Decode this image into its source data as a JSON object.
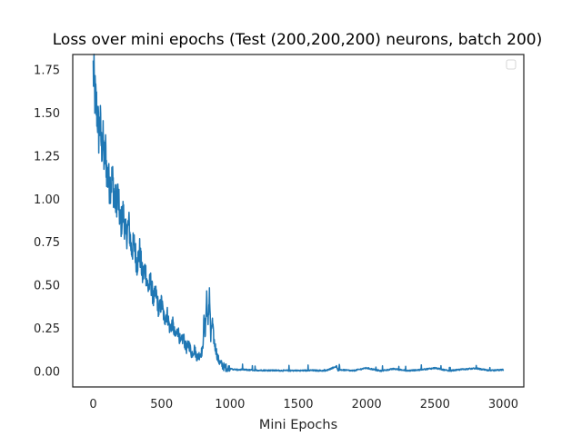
{
  "chart_data": {
    "type": "line",
    "title": "Loss over mini epochs (Test (200,200,200) neurons, batch 200)",
    "xlabel": "Mini Epochs",
    "ylabel": "",
    "xlim": [
      -150,
      3150
    ],
    "ylim": [
      -0.09,
      1.84
    ],
    "xticks": [
      0,
      500,
      1000,
      1500,
      2000,
      2500,
      3000
    ],
    "xtick_labels": [
      "0",
      "500",
      "1000",
      "1500",
      "2000",
      "2500",
      "3000"
    ],
    "yticks": [
      0.0,
      0.25,
      0.5,
      0.75,
      1.0,
      1.25,
      1.5,
      1.75
    ],
    "ytick_labels": [
      "0.00",
      "0.25",
      "0.50",
      "0.75",
      "1.00",
      "1.25",
      "1.50",
      "1.75"
    ],
    "grid": false,
    "legend": {
      "placement": "top-right",
      "entries": []
    },
    "series": [
      {
        "color": "#1f77b4",
        "x": [
          0,
          10,
          20,
          30,
          40,
          50,
          60,
          70,
          80,
          90,
          100,
          120,
          140,
          160,
          180,
          200,
          220,
          240,
          260,
          280,
          300,
          320,
          340,
          360,
          380,
          400,
          420,
          440,
          460,
          480,
          500,
          520,
          540,
          560,
          580,
          600,
          620,
          640,
          660,
          680,
          700,
          720,
          740,
          760,
          780,
          800,
          810,
          820,
          830,
          840,
          850,
          860,
          870,
          880,
          890,
          900,
          910,
          920,
          930,
          940,
          950,
          960,
          980,
          1000,
          1050,
          1100,
          1150,
          1200,
          1300,
          1400,
          1500,
          1600,
          1700,
          1780,
          1790,
          1800,
          1900,
          2000,
          2100,
          2200,
          2300,
          2400,
          2500,
          2600,
          2700,
          2800,
          2900,
          3000
        ],
        "values": [
          1.75,
          1.62,
          1.55,
          1.5,
          1.38,
          1.45,
          1.3,
          1.35,
          1.22,
          1.28,
          1.15,
          1.08,
          1.12,
          0.98,
          1.02,
          0.85,
          0.92,
          0.78,
          0.86,
          0.7,
          0.74,
          0.62,
          0.7,
          0.55,
          0.6,
          0.48,
          0.52,
          0.42,
          0.45,
          0.35,
          0.4,
          0.3,
          0.34,
          0.25,
          0.28,
          0.2,
          0.24,
          0.16,
          0.2,
          0.13,
          0.16,
          0.1,
          0.13,
          0.08,
          0.1,
          0.12,
          0.3,
          0.22,
          0.45,
          0.25,
          0.48,
          0.18,
          0.3,
          0.2,
          0.15,
          0.12,
          0.08,
          0.06,
          0.05,
          0.04,
          0.03,
          0.025,
          0.02,
          0.015,
          0.01,
          0.01,
          0.008,
          0.007,
          0.006,
          0.005,
          0.005,
          0.006,
          0.004,
          0.03,
          0.005,
          0.01,
          0.004,
          0.02,
          0.003,
          0.015,
          0.004,
          0.01,
          0.02,
          0.003,
          0.012,
          0.018,
          0.004,
          0.01
        ]
      }
    ]
  }
}
